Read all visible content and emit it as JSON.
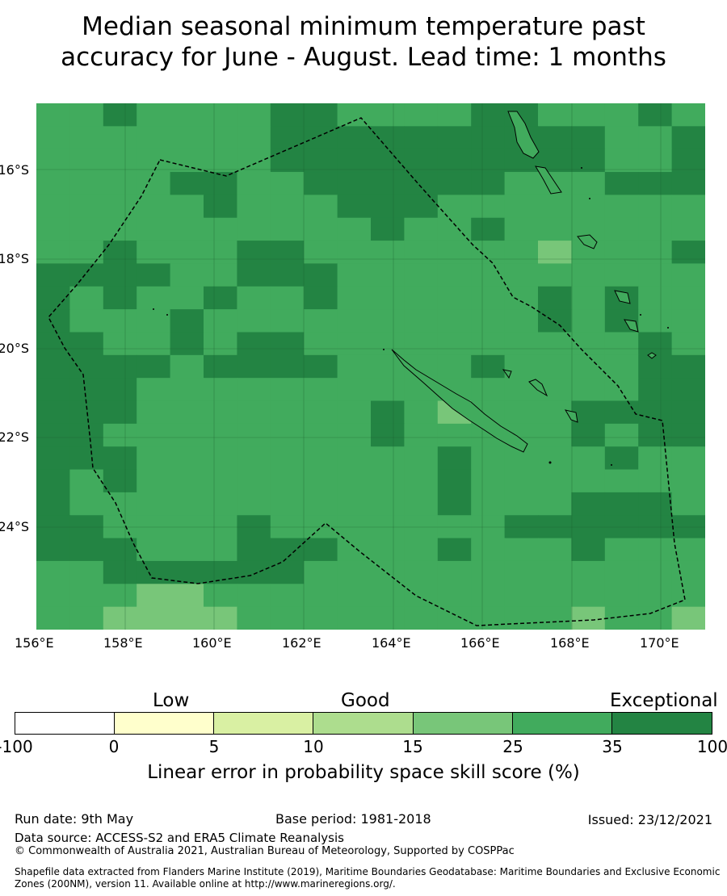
{
  "title_line1": "Median seasonal minimum temperature past",
  "title_line2": "accuracy for June - August. Lead time: 1 months",
  "lat_labels": [
    "16°S",
    "18°S",
    "20°S",
    "22°S",
    "24°S"
  ],
  "lon_labels": [
    "156°E",
    "158°E",
    "160°E",
    "162°E",
    "164°E",
    "166°E",
    "168°E",
    "170°E"
  ],
  "legend": {
    "low": "Low",
    "good": "Good",
    "exceptional": "Exceptional",
    "ticks": [
      "-100",
      "0",
      "5",
      "10",
      "15",
      "25",
      "35",
      "100"
    ],
    "colors": [
      "#ffffff",
      "#ffffcc",
      "#d9f0a3",
      "#addd8e",
      "#78c679",
      "#41ab5d",
      "#238443"
    ],
    "label": "Linear error in probability space skill score (%)"
  },
  "footer": {
    "run_date": "Run date: 9th May",
    "base_period": "Base period: 1981-2018",
    "issued": "Issued: 23/12/2021",
    "data_source": "Data source: ACCESS-S2 and ERA5 Climate Reanalysis",
    "copyright": "© Commonwealth of Australia 2021, Australian Bureau of Meteorology, Supported by COSPPac",
    "shapefile_line1": "Shapefile data extracted from Flanders Marine Institute (2019), Maritime Boundaries Geodatabase: Maritime Boundaries and Exclusive Economic",
    "shapefile_line2": "Zones (200NM), version 11. Available online at http://www.marineregions.org/."
  },
  "map": {
    "colors": {
      "medium": "#41ab5d",
      "dark": "#238443",
      "light": "#78c679"
    },
    "grid_legend": "A = 25–35 %, D = 35–100 %, L = 15–25 %",
    "grid": [
      "AADAAAADDAAAADDAAADA",
      "AAAAAAADDDDDDDDDDAAD",
      "AAAAAAADDDDDDDDDDAAD",
      "AAAADDAADDDDDDAAADDD",
      "AAAAADAAADDDAAAAAAAA",
      "AAAAAAAAAADAADAAAAAA",
      "AADAAADDAAAAAAALAAAD",
      "DDDDAADDDAAAAAAAAAAA",
      "DADAADAADAAAAAADADAA",
      "DAAADAAAAAAAAAADADAA",
      "DDAADADDAAAAAAAAAADA",
      "DDDDADDDDAAAADAAAADD",
      "DDDAAAAAAAAAAAAAAADD",
      "DDDAAAAAAADALAAADDDD",
      "DDAAAAAAAADAAAAADADD",
      "DDDAAAAAAAAADAAAADAA",
      "DADAAAAAAAAADAAAAAAA",
      "DAAAAAAAAAAADAAADDDA",
      "DDAAAADAAAAAAADDDDDD",
      "DDDAAADDDAAADAAADAAA",
      "AADDDDDDAAAAAAAAAAAA",
      "AAALLAAAAAAAAAAAAAAA",
      "AALLLLAAAAAAAAAALAAL"
    ]
  }
}
